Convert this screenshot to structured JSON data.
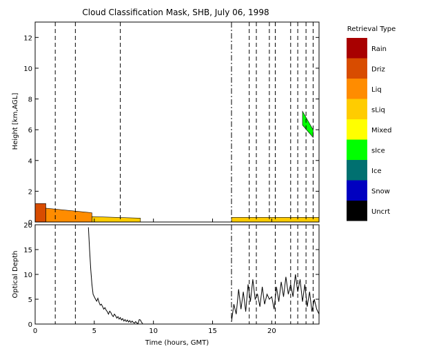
{
  "chart_data": [
    {
      "type": "heatmap",
      "title": "Cloud Classification Mask, SHB, July 06, 1998",
      "ylabel": "Height [km,AGL]",
      "xlim": [
        0,
        24
      ],
      "ylim": [
        0,
        13
      ],
      "y_ticks": [
        0,
        2,
        4,
        6,
        8,
        10,
        12
      ],
      "legend": {
        "title": "Retrieval Type",
        "placement": "right",
        "entries": [
          {
            "label": "Rain",
            "color": "#a80000"
          },
          {
            "label": "Driz",
            "color": "#d84c00"
          },
          {
            "label": "Liq",
            "color": "#ff8c00"
          },
          {
            "label": "sLiq",
            "color": "#ffcc00"
          },
          {
            "label": "Mixed",
            "color": "#ffff00"
          },
          {
            "label": "sIce",
            "color": "#00ff00"
          },
          {
            "label": "Ice",
            "color": "#007070"
          },
          {
            "label": "Snow",
            "color": "#0000c0"
          },
          {
            "label": "Uncrt",
            "color": "#000000"
          }
        ]
      },
      "layers": [
        {
          "class": "Driz",
          "x": [
            0.0,
            0.9
          ],
          "top_km": [
            1.2,
            1.2
          ]
        },
        {
          "class": "Liq",
          "x": [
            0.9,
            4.8
          ],
          "top_km": [
            0.9,
            0.6
          ]
        },
        {
          "class": "sLiq",
          "x": [
            4.8,
            8.9
          ],
          "top_km": [
            0.35,
            0.25
          ]
        },
        {
          "class": "sLiq",
          "x": [
            16.6,
            24.0
          ],
          "top_km": [
            0.3,
            0.3
          ]
        },
        {
          "class": "sIce",
          "x": [
            22.6,
            23.5
          ],
          "top_km": [
            7.2,
            6.0
          ]
        }
      ],
      "dash_dot_lines_x": [
        16.6
      ],
      "dashed_lines_x": [
        1.7,
        3.4,
        7.2,
        18.1,
        18.7,
        19.8,
        20.3,
        21.6,
        22.2,
        22.9,
        23.5
      ]
    },
    {
      "type": "line",
      "xlabel": "Time (hours, GMT)",
      "ylabel": "Optical Depth",
      "xlim": [
        0,
        24
      ],
      "ylim": [
        0,
        20
      ],
      "x_ticks": [
        0,
        5,
        10,
        15,
        20
      ],
      "y_ticks": [
        0,
        5,
        10,
        15,
        20
      ],
      "dash_dot_lines_x": [
        16.6
      ],
      "dashed_lines_x": [
        1.7,
        3.4,
        18.1,
        18.7,
        20.3,
        21.6,
        22.2,
        22.9,
        23.5
      ],
      "series": [
        {
          "x": [
            4.5,
            4.6,
            4.7,
            4.8,
            4.9,
            5.0,
            5.1,
            5.2,
            5.3,
            5.4,
            5.5,
            5.6,
            5.7,
            5.8,
            5.9,
            6.0,
            6.1,
            6.2,
            6.3,
            6.4,
            6.5,
            6.6,
            6.7,
            6.8,
            6.9,
            7.0,
            7.1,
            7.2,
            7.3,
            7.4,
            7.5,
            7.6,
            7.7,
            7.8,
            7.9,
            8.0,
            8.1,
            8.2,
            8.3,
            8.4,
            8.5,
            8.6,
            8.7,
            8.8,
            8.9,
            9.0,
            9.1
          ],
          "y": [
            19.5,
            15.0,
            11.0,
            8.0,
            6.0,
            5.5,
            5.0,
            4.6,
            5.2,
            4.4,
            3.8,
            4.0,
            3.5,
            3.0,
            3.3,
            2.8,
            2.5,
            2.0,
            2.6,
            2.3,
            1.8,
            1.5,
            2.0,
            1.7,
            1.2,
            1.5,
            1.0,
            1.3,
            0.8,
            1.1,
            0.6,
            0.9,
            0.5,
            0.8,
            0.4,
            0.7,
            0.3,
            0.6,
            0.3,
            0.2,
            0.5,
            0.2,
            0.1,
            0.9,
            0.8,
            0.3,
            0.1
          ]
        },
        {
          "x": [
            16.6,
            16.8,
            17.0,
            17.2,
            17.4,
            17.6,
            17.8,
            18.0,
            18.2,
            18.4,
            18.6,
            18.8,
            19.0,
            19.2,
            19.4,
            19.6,
            19.8,
            20.0,
            20.2,
            20.4,
            20.6,
            20.8,
            21.0,
            21.2,
            21.4,
            21.6,
            21.8,
            22.0,
            22.2,
            22.4,
            22.6,
            22.8,
            23.0,
            23.2,
            23.4,
            23.6,
            23.8,
            24.0
          ],
          "y": [
            0.5,
            4.0,
            2.0,
            7.0,
            3.0,
            6.5,
            2.5,
            8.0,
            4.5,
            9.0,
            5.0,
            6.0,
            3.5,
            7.5,
            4.0,
            6.0,
            5.0,
            5.5,
            3.0,
            7.5,
            4.5,
            8.5,
            5.5,
            9.5,
            6.0,
            8.0,
            5.5,
            10.0,
            6.5,
            9.0,
            4.5,
            8.0,
            3.5,
            6.5,
            2.5,
            5.0,
            3.0,
            2.0
          ]
        }
      ]
    }
  ]
}
